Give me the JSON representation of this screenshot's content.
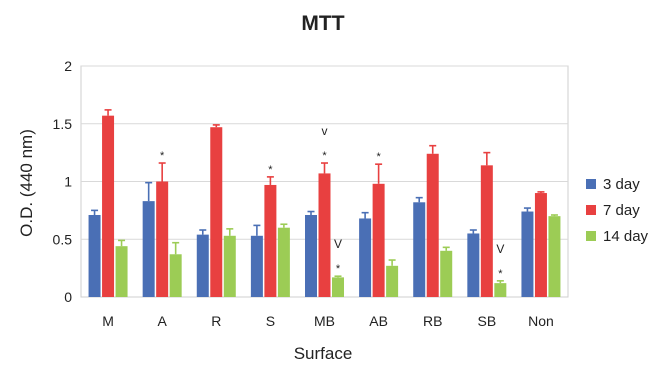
{
  "chart_data": {
    "type": "bar",
    "title": "MTT",
    "xlabel": "Surface",
    "ylabel": "O.D. (440 nm)",
    "categories": [
      "M",
      "A",
      "R",
      "S",
      "MB",
      "AB",
      "RB",
      "SB",
      "Non"
    ],
    "ylim": [
      0,
      2
    ],
    "yticks": [
      "0",
      "0.5",
      "1",
      "1.5",
      "2"
    ],
    "grid": true,
    "legend_position": "right",
    "series": [
      {
        "name": "3 day",
        "color": "#4a6fb5",
        "values": [
          0.71,
          0.83,
          0.54,
          0.53,
          0.71,
          0.68,
          0.82,
          0.55,
          0.74
        ],
        "errors": [
          0.04,
          0.16,
          0.04,
          0.09,
          0.03,
          0.05,
          0.04,
          0.03,
          0.03
        ]
      },
      {
        "name": "7 day",
        "color": "#e84040",
        "values": [
          1.57,
          1.0,
          1.47,
          0.97,
          1.07,
          0.98,
          1.24,
          1.14,
          0.9
        ],
        "errors": [
          0.05,
          0.16,
          0.02,
          0.07,
          0.09,
          0.17,
          0.07,
          0.11,
          0.01
        ]
      },
      {
        "name": "14 day",
        "color": "#9ccc55",
        "values": [
          0.44,
          0.37,
          0.53,
          0.6,
          0.17,
          0.27,
          0.4,
          0.12,
          0.7
        ],
        "errors": [
          0.05,
          0.1,
          0.06,
          0.03,
          0.01,
          0.05,
          0.03,
          0.02,
          0.01
        ]
      }
    ],
    "annotations": [
      {
        "category": "A",
        "series": "7 day",
        "text": "*"
      },
      {
        "category": "S",
        "series": "7 day",
        "text": "*"
      },
      {
        "category": "MB",
        "series": "7 day",
        "text": "*"
      },
      {
        "category": "MB",
        "series": "7 day",
        "text": "v"
      },
      {
        "category": "AB",
        "series": "7 day",
        "text": "*"
      },
      {
        "category": "MB",
        "series": "14 day",
        "text": "*"
      },
      {
        "category": "MB",
        "series": "14 day",
        "text": "V"
      },
      {
        "category": "SB",
        "series": "14 day",
        "text": "*"
      },
      {
        "category": "SB",
        "series": "14 day",
        "text": "V"
      }
    ]
  }
}
